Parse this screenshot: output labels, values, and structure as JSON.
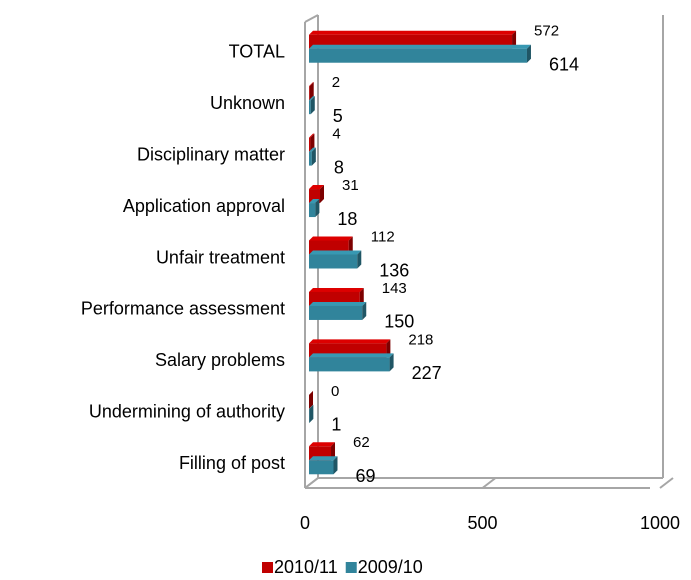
{
  "chart_data": {
    "type": "bar",
    "orientation": "horizontal",
    "three_d": true,
    "categories": [
      "TOTAL",
      "Unknown",
      "Disciplinary matter",
      "Application approval",
      "Unfair treatment",
      "Performance assessment",
      "Salary problems",
      "Undermining of authority",
      "Filling of post"
    ],
    "series": [
      {
        "name": "2010/11",
        "color": "#c00000",
        "values": [
          572,
          2,
          4,
          31,
          112,
          143,
          218,
          0,
          62
        ]
      },
      {
        "name": "2009/10",
        "color": "#31849b",
        "values": [
          614,
          5,
          8,
          18,
          136,
          150,
          227,
          1,
          69
        ]
      }
    ],
    "xlim": [
      0,
      1000
    ],
    "xticks": [
      0,
      500,
      1000
    ],
    "grid": false,
    "legend": "bottom"
  }
}
